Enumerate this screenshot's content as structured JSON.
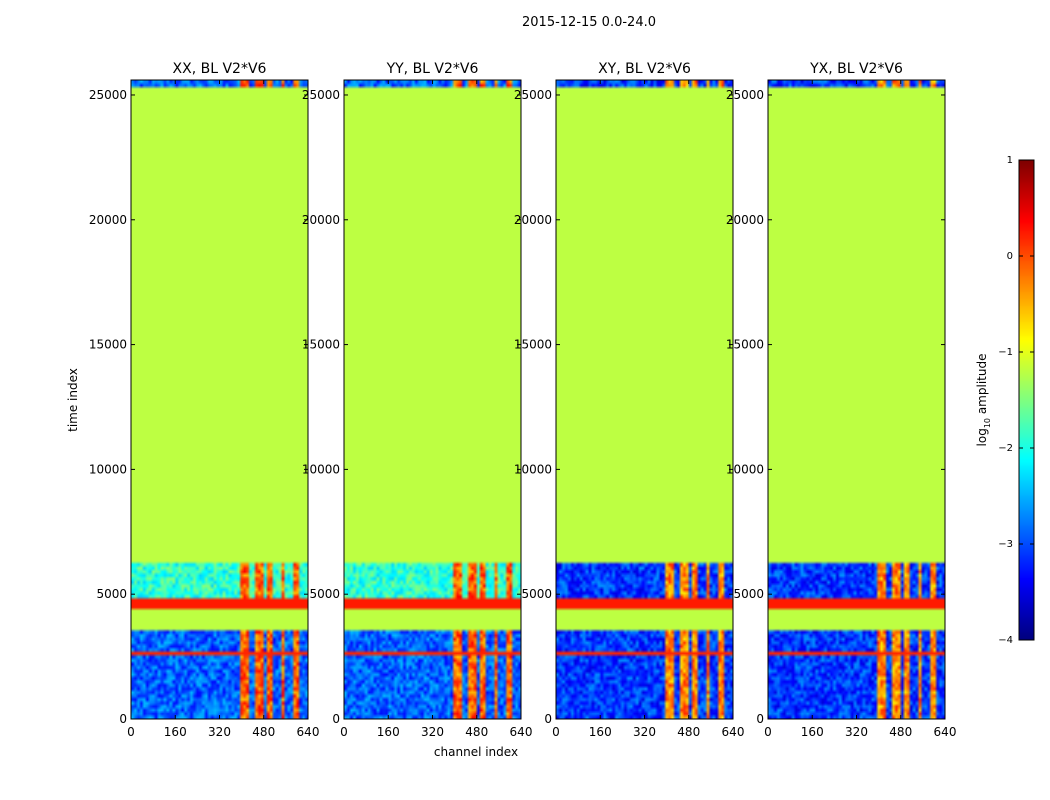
{
  "chart_data": {
    "type": "heatmap",
    "suptitle": "2015-12-15 0.0-24.0",
    "xlabel": "channel index",
    "ylabel": "time index",
    "xlim": [
      0,
      640
    ],
    "ylim": [
      0,
      25600
    ],
    "xticks": [
      0,
      160,
      320,
      480,
      640
    ],
    "yticks": [
      0,
      5000,
      10000,
      15000,
      20000,
      25000
    ],
    "panels": [
      {
        "title": "XX, BL V2*V6",
        "kind": "parallel"
      },
      {
        "title": "YY, BL V2*V6",
        "kind": "parallel"
      },
      {
        "title": "XY, BL V2*V6",
        "kind": "cross"
      },
      {
        "title": "YX, BL V2*V6",
        "kind": "cross"
      }
    ],
    "bands": {
      "fill_value_log10": -1.2,
      "flagged_rows": [
        [
          3600,
          4400
        ],
        [
          4800,
          6300
        ],
        [
          25300,
          25600
        ]
      ],
      "orange_stripe": [
        4400,
        4800
      ],
      "bright_channels": [
        [
          400,
          430
        ],
        [
          450,
          480
        ],
        [
          490,
          510
        ],
        [
          540,
          560
        ],
        [
          590,
          610
        ]
      ]
    },
    "colorbar": {
      "label": "log10 amplitude",
      "label_base": "log",
      "label_sub": "10",
      "label_rest": " amplitude",
      "vmin": -4,
      "vmax": 1,
      "ticks": [
        1,
        0,
        -1,
        -2,
        -3,
        -4
      ],
      "tick_labels": [
        "1",
        "0",
        "−1",
        "−2",
        "−3",
        "−4"
      ],
      "colormap": "jet"
    }
  }
}
